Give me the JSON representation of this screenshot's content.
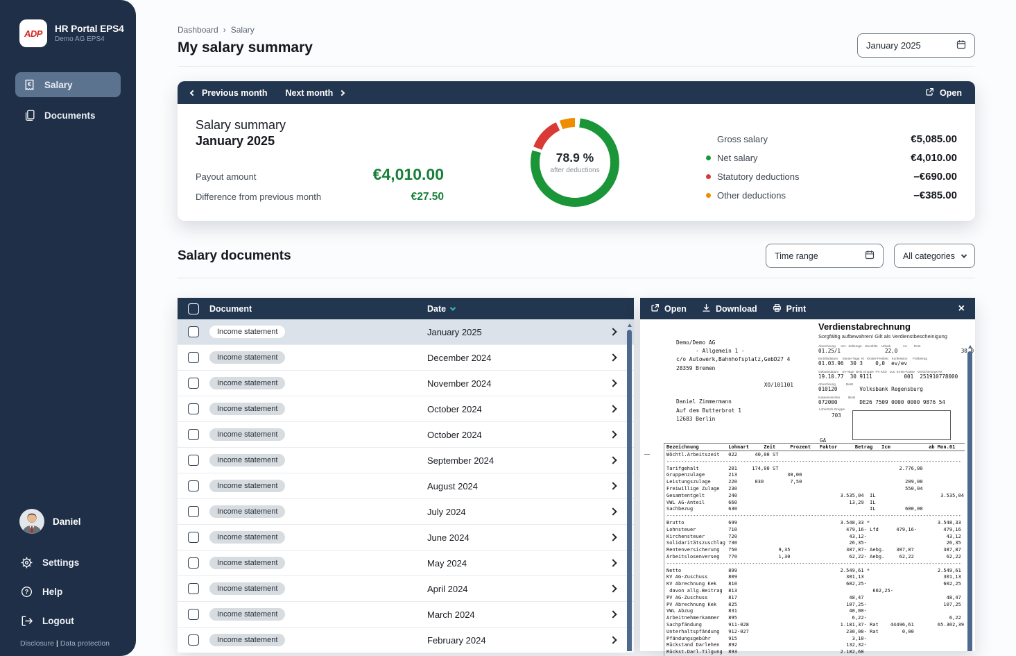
{
  "sidebar": {
    "brand": {
      "logo": "ADP",
      "title": "HR Portal EPS4",
      "subtitle": "Demo AG EPS4"
    },
    "nav": [
      {
        "label": "Salary"
      },
      {
        "label": "Documents"
      }
    ],
    "user": {
      "name": "Daniel"
    },
    "footer_nav": [
      {
        "label": "Settings"
      },
      {
        "label": "Help"
      },
      {
        "label": "Logout"
      }
    ],
    "legal": {
      "disclosure": "Disclosure",
      "separator": "|",
      "data_protection": "Data protection"
    }
  },
  "header": {
    "breadcrumb": {
      "home": "Dashboard",
      "separator": "›",
      "current": "Salary"
    },
    "title": "My salary summary",
    "month_picker": "January 2025"
  },
  "summary": {
    "toolbar": {
      "prev": "Previous month",
      "next": "Next month",
      "open": "Open"
    },
    "card_title": "Salary summary",
    "card_month": "January 2025",
    "payout_label": "Payout amount",
    "payout_value": "€4,010.00",
    "diff_label": "Difference from previous month",
    "diff_value": "€27.50",
    "center_pct": "78.9 %",
    "center_caption": "after deductions",
    "legend": [
      {
        "label": "Gross salary",
        "value": "€5,085.00",
        "dot": ""
      },
      {
        "label": "Net salary",
        "value": "€4,010.00",
        "dot": "#1a9638"
      },
      {
        "label": "Statutory deductions",
        "value": "–€690.00",
        "dot": "#d93a35"
      },
      {
        "label": "Other deductions",
        "value": "–€385.00",
        "dot": "#ef8d00"
      }
    ]
  },
  "chart_data": {
    "type": "pie",
    "donut": true,
    "title": "Salary summary January 2025",
    "center_text": "78.9 %",
    "center_caption": "after deductions",
    "series": [
      {
        "name": "Net salary",
        "value": 4010.0,
        "color": "#1a9638"
      },
      {
        "name": "Statutory deductions",
        "value": 690.0,
        "color": "#d93a35"
      },
      {
        "name": "Other deductions",
        "value": 385.0,
        "color": "#ef8d00"
      }
    ],
    "gross_total": 5085.0,
    "net_percent_after_deductions": 78.9,
    "legend_position": "right",
    "start_angle_deg": 7,
    "gap_deg": 5
  },
  "documents": {
    "heading": "Salary documents",
    "filters": {
      "time_range": "Time range",
      "categories": "All categories"
    },
    "table": {
      "columns": {
        "document": "Document",
        "date": "Date"
      },
      "rows": [
        {
          "badge": "Income statement",
          "date": "January 2025",
          "selected": true
        },
        {
          "badge": "Income statement",
          "date": "December 2024",
          "selected": false
        },
        {
          "badge": "Income statement",
          "date": "November 2024",
          "selected": false
        },
        {
          "badge": "Income statement",
          "date": "October 2024",
          "selected": false
        },
        {
          "badge": "Income statement",
          "date": "October 2024",
          "selected": false
        },
        {
          "badge": "Income statement",
          "date": "September 2024",
          "selected": false
        },
        {
          "badge": "Income statement",
          "date": "August 2024",
          "selected": false
        },
        {
          "badge": "Income statement",
          "date": "July 2024",
          "selected": false
        },
        {
          "badge": "Income statement",
          "date": "June 2024",
          "selected": false
        },
        {
          "badge": "Income statement",
          "date": "May 2024",
          "selected": false
        },
        {
          "badge": "Income statement",
          "date": "April 2024",
          "selected": false
        },
        {
          "badge": "Income statement",
          "date": "March 2024",
          "selected": false
        },
        {
          "badge": "Income statement",
          "date": "February 2024",
          "selected": false
        }
      ]
    }
  },
  "preview": {
    "toolbar": {
      "open": "Open",
      "download": "Download",
      "print": "Print",
      "close": "×"
    },
    "payslip": {
      "title": "Verdienstabrechnung",
      "subtitle": "Sorgfältig aufbewahren! Gilt als Verdienstbescheinigung",
      "address_lines": [
        "Demo/Demo AG",
        "      - Allgemein 1 -",
        "c/o Autowerk,Bahnhofsplatz,GebD27 4",
        "28359 Bremen",
        "",
        "                           XO/101101",
        "",
        "Daniel Zimmermann",
        "Auf dem Butterbrot 1",
        "12683 Berlin"
      ],
      "info_rows": [
        {
          "label": "Abrechnung      Ver-  Zahlungs-   Bezahlte    Urlaub              An-       Rest",
          "value": "01.25/1              22,0                    30,0"
        },
        {
          "label": "Eintrittsdatum     Steuer-Tage  KI   Kinder-Freibetr.   Konfession      Freibetrag",
          "value": "01.03.96  30 3    0,0  ev/ev"
        },
        {
          "label": "Geburtsdatum    SV-Tage  Beitr.Gruppe  PV KiGr   Jus. Krnkn-Kasse   Versicherungs-Nr.",
          "value": "19.10.77  30 9111          001  251910778000"
        },
        {
          "label": "Abrechnung            BaW",
          "value": "010120       Volksbank Regensburg"
        },
        {
          "label": "Kassenzeichen         IBAN",
          "value": "072000       DE26 7509 0000 0000 9876 54"
        }
      ],
      "group_label": "Lohn/Geh-Gruppe",
      "group_value": "703",
      "ga_label": "GA",
      "table_header": "Bezeichnung          Lohnart     Zeit     Prozent   Faktor      Betrag   Icm             ab Mon.01",
      "table_lines": [
        "Wöchtl.Arbeitszeit   022      40,00 ST",
        "----------------------------------------------------------------------------------------------------",
        "Tarifgehalt          201     174,00 ST                                         2.776,00",
        "Gruppenzulage        213                 30,00",
        "Leistungszulage      220      030         7,50                                   209,00",
        "Freiwillige Zulage   230                                                         550,04",
        "Gesamtentgelt        240                                   3.535,04  IL                      3.535,04",
        "VWL AG-Anteil        660                                      13,29  IL",
        "Sachbezug            630                                             IL          600,00",
        "----------------------------------------------------------------------------------------------------",
        "Brutto               699                                   3.548,33 *                       3.548,33",
        "Lohnsteuer           710                                     479,16- Lfd      479,16-         479,16",
        "Kirchensteuer        720                                      43,12-                           43,12",
        "Solidaritätszuschlag 730                                      26,35-                           26,35",
        "Rentenversicherung   750              9,35                   387,87- Aebg.    387,87          387,87",
        "Arbeitslosenverseg   770              1,30                    62,22- Aebg.     62,22           62,22",
        "----------------------------------------------------------------------------------------------------",
        "Netto                899                                   2.549,61 *                       2.549,61",
        "KV AG-Zuschuss       809                                     301,13                           301,13",
        "KV Abrechnung Kek    810                                     602,25-                          602,25",
        " davon allg.Beitrag  813                                              602,25-",
        "PV AG-Zuschuss       817                                      48,47                            48,47",
        "PV Abrechnung Kek    825                                     107,25-                          107,25",
        "VWL Abzug            831                                      40,00-",
        "Arbeitnehmerkammer   895                                       6,22-                            6,22",
        "Sachpfändung         911-028                               1.181,37- Rat    44496,61        65.302,39",
        "Unterhaltspfändung   912-027                                 230,08- Rat        0,00",
        "Pfändungsgebühr      915                                       3,10-",
        "Rückstand Darlehen   892                                     132,32-",
        "Rückst.Darl.Tilgung  893                                   2.182,68"
      ]
    }
  }
}
